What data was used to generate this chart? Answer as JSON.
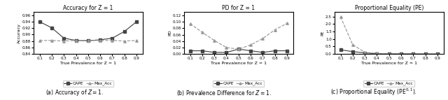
{
  "x": [
    0.1,
    0.2,
    0.3,
    0.4,
    0.5,
    0.6,
    0.7,
    0.8,
    0.9
  ],
  "accuracy_cape": [
    0.94,
    0.921,
    0.889,
    0.882,
    0.881,
    0.884,
    0.889,
    0.91,
    0.94
  ],
  "accuracy_maxacc": [
    0.882,
    0.882,
    0.88,
    0.882,
    0.882,
    0.882,
    0.882,
    0.88,
    0.882
  ],
  "pd_cape": [
    0.01,
    0.01,
    0.005,
    0.005,
    0.015,
    0.01,
    0.005,
    0.01,
    0.01
  ],
  "pd_maxacc": [
    0.094,
    0.067,
    0.042,
    0.02,
    0.015,
    0.028,
    0.048,
    0.075,
    0.095
  ],
  "pe_cape": [
    0.28,
    0.16,
    0.08,
    0.02,
    0.01,
    0.01,
    0.005,
    0.003,
    0.003
  ],
  "pe_maxacc": [
    2.48,
    0.62,
    0.12,
    0.04,
    0.02,
    0.01,
    0.005,
    0.003,
    0.003
  ],
  "title1": "Accuracy for Z = 1",
  "title2": "PD for Z = 1",
  "title3": "Proportional Equality (PE)",
  "xlabel": "True Prevalence for Z = 1",
  "ylabel1": "Accuracy",
  "ylabel2": "PD",
  "ylabel3": "PE",
  "caption1": "(a) Accuracy of $Z=1$.",
  "caption2": "(b) Prevalence Difference for $Z=1$.",
  "caption3": "(c) Proportional Equality ($\\mathrm{PE}^{0,1}$).",
  "color_cape": "#444444",
  "color_maxacc": "#999999",
  "marker_cape": "s",
  "marker_maxacc": "^",
  "legend_cape": "CAPE",
  "legend_maxacc": "Max_Acc",
  "acc_ylim": [
    0.84,
    0.97
  ],
  "acc_yticks": [
    0.84,
    0.86,
    0.88,
    0.9,
    0.92,
    0.94,
    0.96
  ],
  "pd_ylim": [
    0.0,
    0.13
  ],
  "pd_yticks": [
    0.0,
    0.02,
    0.04,
    0.06,
    0.08,
    0.1,
    0.12
  ],
  "pe_ylim": [
    0.0,
    2.8
  ],
  "pe_yticks": [
    0.0,
    0.5,
    1.0,
    1.5,
    2.0,
    2.5
  ]
}
